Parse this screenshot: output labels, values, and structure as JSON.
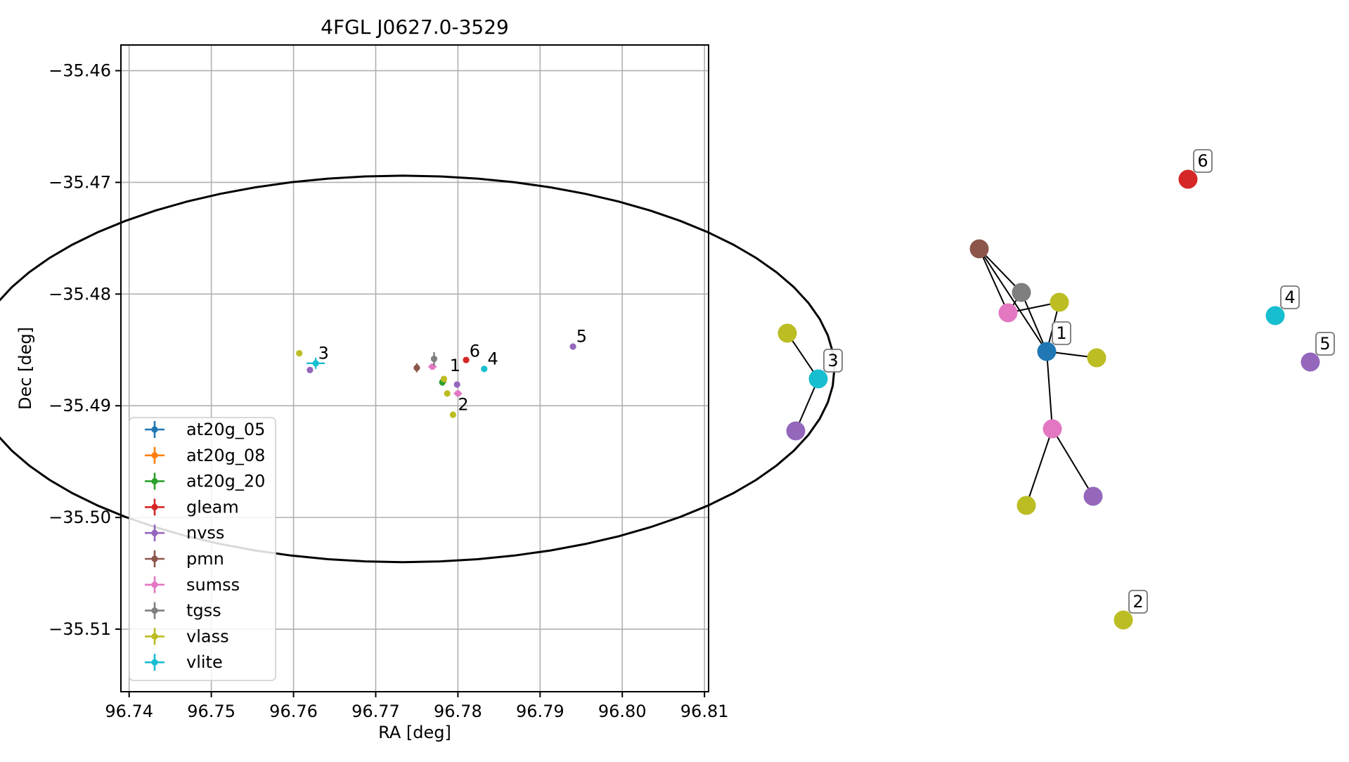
{
  "chart_data": [
    {
      "type": "scatter",
      "title": "4FGL J0627.0-3529",
      "xlabel": "RA [deg]",
      "ylabel": "Dec [deg]",
      "xlim": [
        96.739,
        96.8105
      ],
      "ylim": [
        -35.5156,
        -35.4577
      ],
      "xticks": [
        96.74,
        96.75,
        96.76,
        96.77,
        96.78,
        96.79,
        96.8,
        96.81
      ],
      "xtick_labels": [
        "96.74",
        "96.75",
        "96.76",
        "96.77",
        "96.78",
        "96.79",
        "96.80",
        "96.81"
      ],
      "yticks": [
        -35.46,
        -35.47,
        -35.48,
        -35.49,
        -35.5,
        -35.51
      ],
      "ytick_labels": [
        "−35.46",
        "−35.47",
        "−35.48",
        "−35.49",
        "−35.50",
        "−35.51"
      ],
      "grid": true,
      "legend_position": "lower-left",
      "colors": {
        "at20g_05": "#1f77b4",
        "at20g_08": "#ff7f0e",
        "at20g_20": "#2ca02c",
        "gleam": "#d62728",
        "nvss": "#9467bd",
        "pmn": "#8c564b",
        "sumss": "#e377c2",
        "tgss": "#7f7f7f",
        "vlass": "#bcbd22",
        "vlite": "#17becf"
      },
      "legend": [
        "at20g_05",
        "at20g_08",
        "at20g_20",
        "gleam",
        "nvss",
        "pmn",
        "sumss",
        "tgss",
        "vlass",
        "vlite"
      ],
      "ellipse": {
        "center": [
          96.7733,
          -35.4867
        ],
        "ra_semi_axis": 0.0525,
        "dec_semi_axis": 0.0173
      },
      "points": [
        {
          "survey": "at20g_05",
          "x": 96.7782,
          "y": -35.4878,
          "err": [
            0.0004,
            0.0004
          ]
        },
        {
          "survey": "at20g_08",
          "x": 96.7782,
          "y": -35.4878,
          "err": [
            0.0003,
            0.0003
          ]
        },
        {
          "survey": "at20g_20",
          "x": 96.7781,
          "y": -35.4879,
          "err": [
            0.0003,
            0.0003
          ]
        },
        {
          "survey": "gleam",
          "x": 96.781,
          "y": -35.4859,
          "err": [
            0.0,
            0.0
          ]
        },
        {
          "survey": "nvss",
          "x": 96.762,
          "y": -35.4868,
          "err": [
            0.0,
            0.0
          ]
        },
        {
          "survey": "nvss",
          "x": 96.7799,
          "y": -35.4881,
          "err": [
            0.0,
            0.0
          ]
        },
        {
          "survey": "nvss",
          "x": 96.794,
          "y": -35.4847,
          "err": [
            0.0,
            0.0
          ]
        },
        {
          "survey": "pmn",
          "x": 96.775,
          "y": -35.4866,
          "err": [
            0.0,
            0.0004
          ]
        },
        {
          "survey": "sumss",
          "x": 96.7769,
          "y": -35.4865,
          "err": [
            0.0005,
            0.0
          ]
        },
        {
          "survey": "sumss",
          "x": 96.78,
          "y": -35.4889,
          "err": [
            0.0005,
            0.0
          ]
        },
        {
          "survey": "tgss",
          "x": 96.7771,
          "y": -35.4858,
          "err": [
            0.0002,
            0.0006
          ]
        },
        {
          "survey": "vlass",
          "x": 96.7607,
          "y": -35.4853,
          "err": [
            0.0,
            0.0
          ]
        },
        {
          "survey": "vlass",
          "x": 96.7783,
          "y": -35.4876,
          "err": [
            0.0,
            0.0
          ]
        },
        {
          "survey": "vlass",
          "x": 96.7787,
          "y": -35.4889,
          "err": [
            0.0,
            0.0
          ]
        },
        {
          "survey": "vlass",
          "x": 96.7794,
          "y": -35.4908,
          "err": [
            0.0,
            0.0
          ]
        },
        {
          "survey": "vlite",
          "x": 96.7627,
          "y": -35.4862,
          "err": [
            0.0011,
            0.0005
          ]
        },
        {
          "survey": "vlite",
          "x": 96.7832,
          "y": -35.4867,
          "err": [
            0.0,
            0.0
          ]
        }
      ],
      "annotations": [
        {
          "text": "1",
          "x": 96.779,
          "y": -35.4869
        },
        {
          "text": "2",
          "x": 96.78,
          "y": -35.4904
        },
        {
          "text": "3",
          "x": 96.763,
          "y": -35.4858
        },
        {
          "text": "4",
          "x": 96.7836,
          "y": -35.4863
        },
        {
          "text": "5",
          "x": 96.7944,
          "y": -35.4843
        },
        {
          "text": "6",
          "x": 96.7814,
          "y": -35.4856
        }
      ]
    },
    {
      "type": "network",
      "nodes": [
        {
          "id": "n1",
          "survey": "at20g_05",
          "label": "1"
        },
        {
          "id": "n2",
          "survey": "vlass",
          "label": "2"
        },
        {
          "id": "n3",
          "survey": "vlite",
          "label": "3"
        },
        {
          "id": "n4",
          "survey": "vlite",
          "label": "4"
        },
        {
          "id": "n5",
          "survey": "nvss",
          "label": "5"
        },
        {
          "id": "n6",
          "survey": "gleam",
          "label": "6"
        },
        {
          "id": "pmn_a",
          "survey": "pmn",
          "label": ""
        },
        {
          "id": "tgss_a",
          "survey": "tgss",
          "label": ""
        },
        {
          "id": "sumss_a",
          "survey": "sumss",
          "label": ""
        },
        {
          "id": "vlass_a",
          "survey": "vlass",
          "label": ""
        },
        {
          "id": "vlass_b",
          "survey": "vlass",
          "label": ""
        },
        {
          "id": "sumss_b",
          "survey": "sumss",
          "label": ""
        },
        {
          "id": "vlass_c",
          "survey": "vlass",
          "label": ""
        },
        {
          "id": "nvss_a",
          "survey": "nvss",
          "label": ""
        },
        {
          "id": "vlass_d",
          "survey": "vlass",
          "label": ""
        },
        {
          "id": "nvss_b",
          "survey": "nvss",
          "label": ""
        }
      ],
      "edges": [
        [
          "pmn_a",
          "tgss_a"
        ],
        [
          "pmn_a",
          "sumss_a"
        ],
        [
          "pmn_a",
          "n1"
        ],
        [
          "tgss_a",
          "sumss_a"
        ],
        [
          "tgss_a",
          "n1"
        ],
        [
          "sumss_a",
          "vlass_a"
        ],
        [
          "vlass_a",
          "n1"
        ],
        [
          "n1",
          "vlass_b"
        ],
        [
          "n1",
          "sumss_b"
        ],
        [
          "sumss_b",
          "vlass_c"
        ],
        [
          "sumss_b",
          "nvss_a"
        ],
        [
          "vlass_d",
          "n3"
        ],
        [
          "n3",
          "nvss_b"
        ]
      ]
    }
  ]
}
